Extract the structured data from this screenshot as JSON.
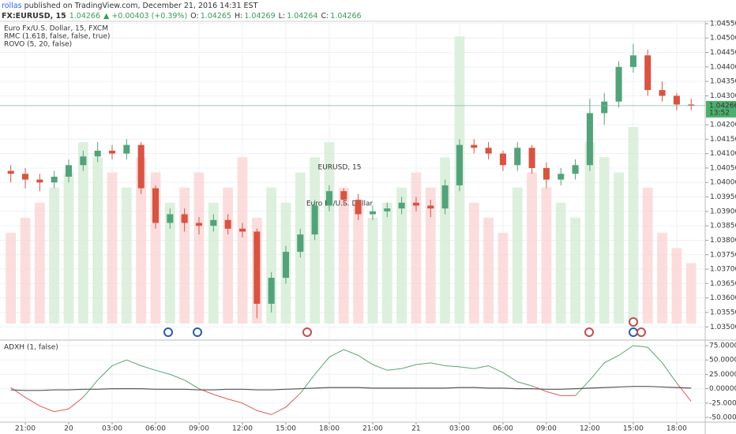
{
  "header": {
    "author": "rollas",
    "published": " published on TradingView.com, December 21, 2016 14:31 EST",
    "symbol": "FX:EURUSD, 15",
    "price": "1.04266",
    "change": "▲ +0.00403 (+0.39%)",
    "o_label": "O:",
    "o_value": "1.04265",
    "h_label": "H:",
    "h_value": "1.04269",
    "l_label": "L:",
    "l_value": "1.04264",
    "c_label": "C:",
    "c_value": "1.04266"
  },
  "chart_data": [
    {
      "type": "candlestick",
      "legend_lines": [
        "Euro Fx/U.S. Dollar, 15, FXCM",
        "RMC (1.618, false, false, true)",
        "ROVO (5, 20, false)"
      ],
      "watermark": "EURUSD, 15",
      "watermark_subtitle": "Euro Fx/U.S. Dollar",
      "up_color": "#53a27b",
      "down_color": "#d75442",
      "volume_up_color": "#d4ecd6",
      "volume_down_color": "#fbd5d6",
      "open": [
        1.0404,
        1.0403,
        1.0401,
        1.04,
        1.0402,
        1.0406,
        1.0409,
        1.0411,
        1.041,
        1.0413,
        1.0398,
        1.0386,
        1.0389,
        1.0386,
        1.0385,
        1.0387,
        1.0384,
        1.0383,
        1.0358,
        1.0367,
        1.0376,
        1.0382,
        1.0392,
        1.0397,
        1.0394,
        1.0389,
        1.039,
        1.0391,
        1.0393,
        1.0392,
        1.0391,
        1.0399,
        1.0413,
        1.0412,
        1.041,
        1.0406,
        1.0412,
        1.0405,
        1.0401,
        1.0403,
        1.0406,
        1.0424,
        1.0428,
        1.044,
        1.0444,
        1.0432,
        1.043,
        1.0427
      ],
      "high": [
        1.0406,
        1.0405,
        1.0403,
        1.0404,
        1.0408,
        1.0411,
        1.0414,
        1.0413,
        1.0415,
        1.0414,
        1.0399,
        1.0391,
        1.0391,
        1.0388,
        1.0389,
        1.0389,
        1.0386,
        1.0384,
        1.0369,
        1.0378,
        1.0384,
        1.0394,
        1.0399,
        1.0398,
        1.0396,
        1.0392,
        1.0393,
        1.0395,
        1.0395,
        1.0394,
        1.0401,
        1.0415,
        1.0415,
        1.0414,
        1.0411,
        1.0414,
        1.0413,
        1.0407,
        1.0405,
        1.0408,
        1.0429,
        1.0431,
        1.0442,
        1.0448,
        1.0446,
        1.0435,
        1.0431,
        1.0429
      ],
      "low": [
        1.04,
        1.0398,
        1.0397,
        1.0398,
        1.04,
        1.0404,
        1.0407,
        1.0408,
        1.0408,
        1.0396,
        1.0384,
        1.0384,
        1.0383,
        1.0382,
        1.0383,
        1.0382,
        1.0381,
        1.0353,
        1.0355,
        1.0365,
        1.0374,
        1.038,
        1.039,
        1.0392,
        1.0387,
        1.0387,
        1.0388,
        1.0389,
        1.039,
        1.0388,
        1.0389,
        1.0397,
        1.041,
        1.0408,
        1.0404,
        1.0404,
        1.0403,
        1.0398,
        1.0399,
        1.0401,
        1.0404,
        1.042,
        1.0426,
        1.0438,
        1.043,
        1.0428,
        1.0425,
        1.0425
      ],
      "close": [
        1.0403,
        1.0401,
        1.04,
        1.0402,
        1.0406,
        1.0409,
        1.0411,
        1.041,
        1.0413,
        1.0398,
        1.0386,
        1.0389,
        1.0386,
        1.0385,
        1.0387,
        1.0384,
        1.0383,
        1.0358,
        1.0367,
        1.0376,
        1.0382,
        1.0392,
        1.0397,
        1.0394,
        1.0389,
        1.039,
        1.0391,
        1.0393,
        1.0392,
        1.0391,
        1.0399,
        1.0413,
        1.0412,
        1.041,
        1.0406,
        1.0412,
        1.0405,
        1.0401,
        1.0403,
        1.0406,
        1.0424,
        1.0428,
        1.044,
        1.0444,
        1.0432,
        1.043,
        1.0427,
        1.04266
      ],
      "volume": [
        30,
        35,
        40,
        45,
        50,
        60,
        55,
        50,
        45,
        55,
        50,
        40,
        45,
        50,
        40,
        45,
        55,
        35,
        45,
        40,
        50,
        55,
        60,
        45,
        40,
        35,
        40,
        45,
        50,
        45,
        55,
        95,
        40,
        35,
        30,
        45,
        50,
        45,
        40,
        35,
        60,
        55,
        50,
        65,
        45,
        30,
        25,
        20
      ],
      "volume_lim": [
        0,
        100
      ],
      "last_price": 1.04266,
      "countdown": "13:52",
      "ylim": [
        1.03457,
        1.04558
      ],
      "yticks": [
        {
          "value": 1.035,
          "label": "1.03500"
        },
        {
          "value": 1.0355,
          "label": "1.03550"
        },
        {
          "value": 1.036,
          "label": "1.03600"
        },
        {
          "value": 1.0365,
          "label": "1.03650"
        },
        {
          "value": 1.037,
          "label": "1.03700"
        },
        {
          "value": 1.0375,
          "label": "1.03750"
        },
        {
          "value": 1.038,
          "label": "1.03800"
        },
        {
          "value": 1.0385,
          "label": "1.03850"
        },
        {
          "value": 1.039,
          "label": "1.03900"
        },
        {
          "value": 1.0395,
          "label": "1.03950"
        },
        {
          "value": 1.04,
          "label": "1.04000"
        },
        {
          "value": 1.0405,
          "label": "1.04050"
        },
        {
          "value": 1.041,
          "label": "1.04100"
        },
        {
          "value": 1.0415,
          "label": "1.04150"
        },
        {
          "value": 1.042,
          "label": "1.04200"
        },
        {
          "value": 1.043,
          "label": "1.04300"
        },
        {
          "value": 1.0435,
          "label": "1.04350"
        },
        {
          "value": 1.044,
          "label": "1.04400"
        },
        {
          "value": 1.0445,
          "label": "1.04450"
        },
        {
          "value": 1.045,
          "label": "1.04500"
        },
        {
          "value": 1.0455,
          "label": "1.04550"
        }
      ],
      "grid": true
    },
    {
      "type": "line",
      "title": "ADXH (1, false)",
      "positive_color": "#5aa66e",
      "negative_color": "#e05a5a",
      "series": [
        {
          "values": [
            2,
            -15,
            -30,
            -40,
            -35,
            -15,
            15,
            40,
            50,
            40,
            32,
            25,
            15,
            0,
            -10,
            -18,
            -25,
            -38,
            -45,
            -32,
            -8,
            25,
            55,
            68,
            58,
            42,
            32,
            35,
            42,
            45,
            40,
            38,
            35,
            40,
            28,
            12,
            5,
            -5,
            -12,
            -12,
            15,
            45,
            58,
            75,
            72,
            45,
            10,
            -22
          ]
        },
        {
          "color": "#555555",
          "values": [
            -2,
            -3,
            -3,
            -2,
            -2,
            -1,
            -1,
            0,
            0,
            0,
            -1,
            -1,
            -1,
            -2,
            -2,
            -1,
            -1,
            -2,
            -2,
            -1,
            0,
            1,
            2,
            2,
            2,
            1,
            1,
            1,
            1,
            1,
            1,
            2,
            2,
            1,
            1,
            0,
            0,
            -1,
            -1,
            0,
            1,
            2,
            3,
            4,
            4,
            3,
            2,
            1
          ]
        }
      ],
      "ylim": [
        -58.2,
        83.2
      ],
      "yticks": [
        {
          "value": 75,
          "label": "75.000000"
        },
        {
          "value": 50,
          "label": "50.000000"
        },
        {
          "value": 25,
          "label": "25.000000"
        },
        {
          "value": 0,
          "label": "0.000000"
        },
        {
          "value": -25,
          "label": "-25.000000"
        },
        {
          "value": -50,
          "label": "-50.000000"
        }
      ],
      "xlim": [
        -0.747,
        47.97
      ],
      "xticks": [
        {
          "value": 1,
          "label": "21:00"
        },
        {
          "value": 4,
          "label": "20"
        },
        {
          "value": 7,
          "label": "03:00"
        },
        {
          "value": 10,
          "label": "06:00"
        },
        {
          "value": 13,
          "label": "09:00"
        },
        {
          "value": 16,
          "label": "12:00"
        },
        {
          "value": 19,
          "label": "15:00"
        },
        {
          "value": 22,
          "label": "18:00"
        },
        {
          "value": 25,
          "label": "21:00"
        },
        {
          "value": 28,
          "label": "21"
        },
        {
          "value": 31,
          "label": "03:00"
        },
        {
          "value": 34,
          "label": "06:00"
        },
        {
          "value": 37,
          "label": "09:00"
        },
        {
          "value": 40,
          "label": "12:00"
        },
        {
          "value": 43,
          "label": "15:00"
        },
        {
          "value": 46,
          "label": "18:00"
        }
      ],
      "grid": true
    }
  ]
}
